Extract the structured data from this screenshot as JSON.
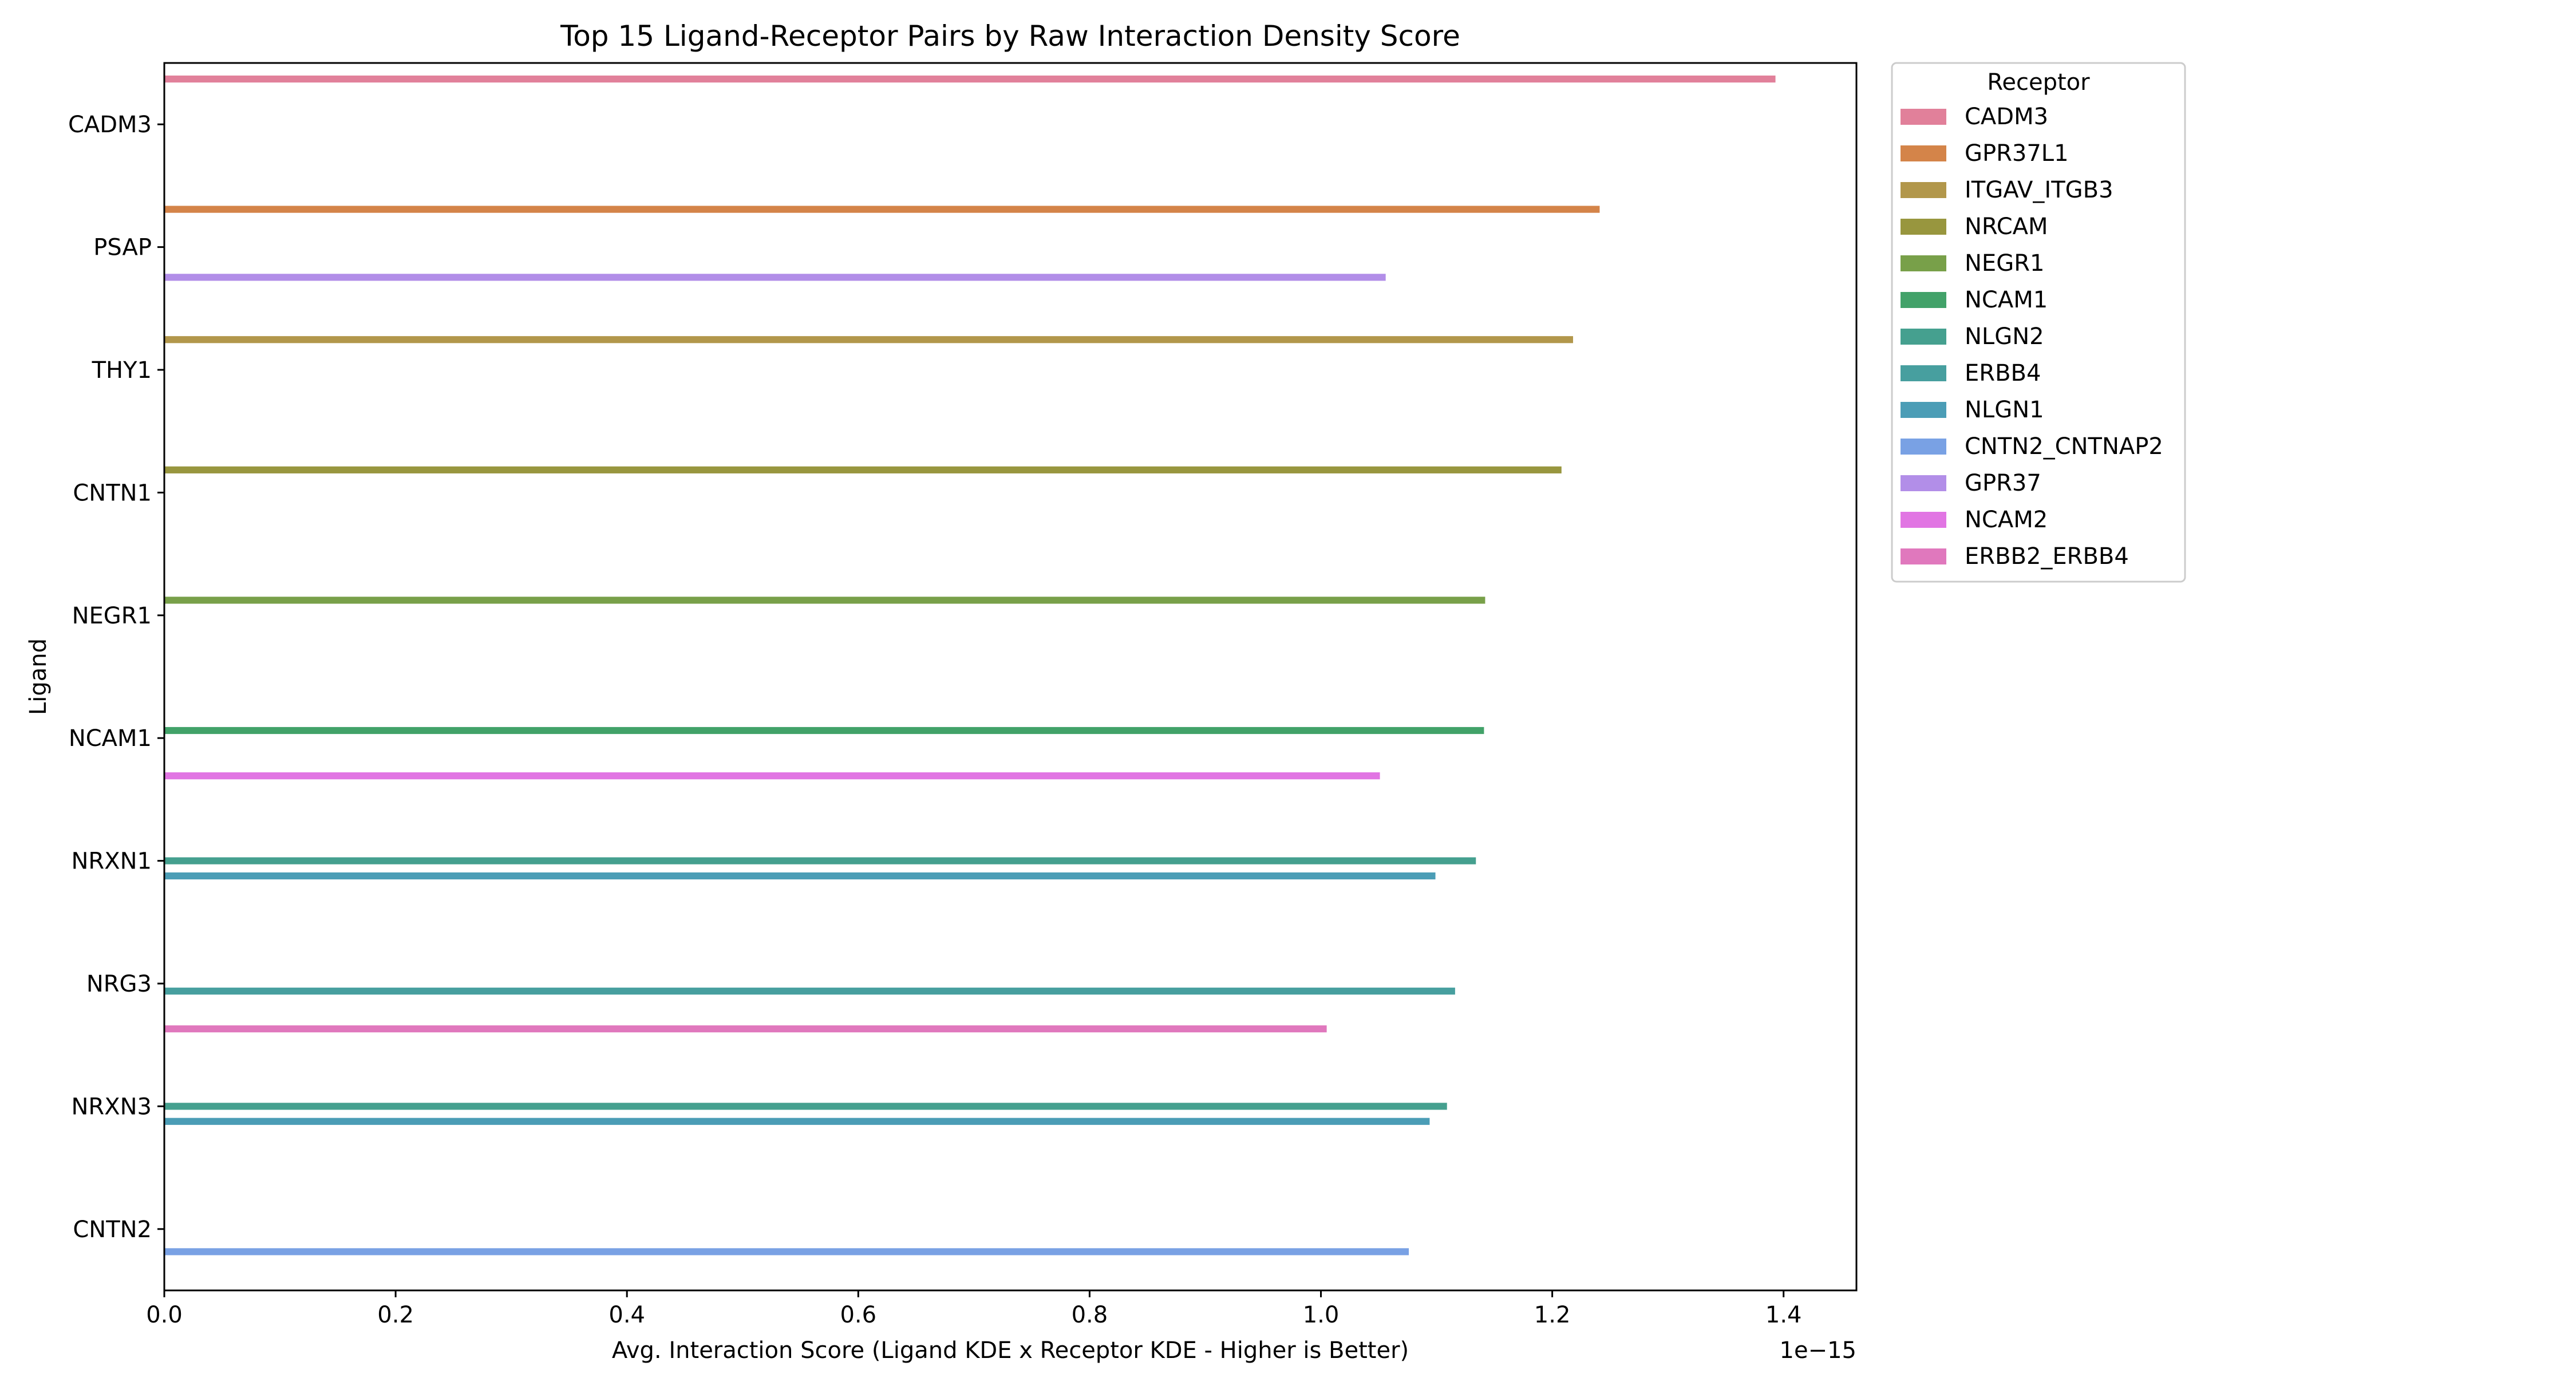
{
  "chart_data": {
    "type": "bar",
    "orientation": "horizontal",
    "title": "Top 15 Ligand-Receptor Pairs by Raw Interaction Density Score",
    "xlabel": "Avg. Interaction Score (Ligand KDE x Receptor KDE - Higher is Better)",
    "ylabel": "Ligand",
    "x_offset_label": "1e−15",
    "xlim": [
      0,
      1.463
    ],
    "x_ticks": [
      0.0,
      0.2,
      0.4,
      0.6,
      0.8,
      1.0,
      1.2,
      1.4
    ],
    "x_tick_labels": [
      "0.0",
      "0.2",
      "0.4",
      "0.6",
      "0.8",
      "1.0",
      "1.2",
      "1.4"
    ],
    "grid": false,
    "legend_title": "Receptor",
    "legend_position": "outside-upper-right",
    "categories": [
      "CADM3",
      "PSAP",
      "THY1",
      "CNTN1",
      "NEGR1",
      "NCAM1",
      "NRXN1",
      "NRG3",
      "NRXN3",
      "CNTN2"
    ],
    "series": [
      {
        "name": "CADM3",
        "color": "#e1809a",
        "values": [
          1.393,
          null,
          null,
          null,
          null,
          null,
          null,
          null,
          null,
          null
        ]
      },
      {
        "name": "GPR37L1",
        "color": "#d48449",
        "values": [
          null,
          1.241,
          null,
          null,
          null,
          null,
          null,
          null,
          null,
          null
        ]
      },
      {
        "name": "ITGAV_ITGB3",
        "color": "#b2974b",
        "values": [
          null,
          null,
          1.218,
          null,
          null,
          null,
          null,
          null,
          null,
          null
        ]
      },
      {
        "name": "NRCAM",
        "color": "#98963e",
        "values": [
          null,
          null,
          null,
          1.208,
          null,
          null,
          null,
          null,
          null,
          null
        ]
      },
      {
        "name": "NEGR1",
        "color": "#78a049",
        "values": [
          null,
          null,
          null,
          null,
          1.142,
          null,
          null,
          null,
          null,
          null
        ]
      },
      {
        "name": "NCAM1",
        "color": "#42a269",
        "values": [
          null,
          null,
          null,
          null,
          null,
          1.141,
          null,
          null,
          null,
          null
        ]
      },
      {
        "name": "NLGN2",
        "color": "#45a08f",
        "values": [
          null,
          null,
          null,
          null,
          null,
          null,
          1.134,
          null,
          1.109,
          null
        ]
      },
      {
        "name": "ERBB4",
        "color": "#479f9f",
        "values": [
          null,
          null,
          null,
          null,
          null,
          null,
          null,
          1.116,
          null,
          null
        ]
      },
      {
        "name": "NLGN1",
        "color": "#4b9db6",
        "values": [
          null,
          null,
          null,
          null,
          null,
          null,
          1.099,
          null,
          1.094,
          null
        ]
      },
      {
        "name": "CNTN2_CNTNAP2",
        "color": "#79a1e4",
        "values": [
          null,
          null,
          null,
          null,
          null,
          null,
          null,
          null,
          null,
          1.076
        ]
      },
      {
        "name": "GPR37",
        "color": "#b28ee8",
        "values": [
          null,
          1.056,
          null,
          null,
          null,
          null,
          null,
          null,
          null,
          null
        ]
      },
      {
        "name": "NCAM2",
        "color": "#e175e3",
        "values": [
          null,
          null,
          null,
          null,
          null,
          1.051,
          null,
          null,
          null,
          null
        ]
      },
      {
        "name": "ERBB2_ERBB4",
        "color": "#e078bd",
        "values": [
          null,
          null,
          null,
          null,
          null,
          null,
          null,
          1.005,
          null,
          null
        ]
      }
    ]
  }
}
